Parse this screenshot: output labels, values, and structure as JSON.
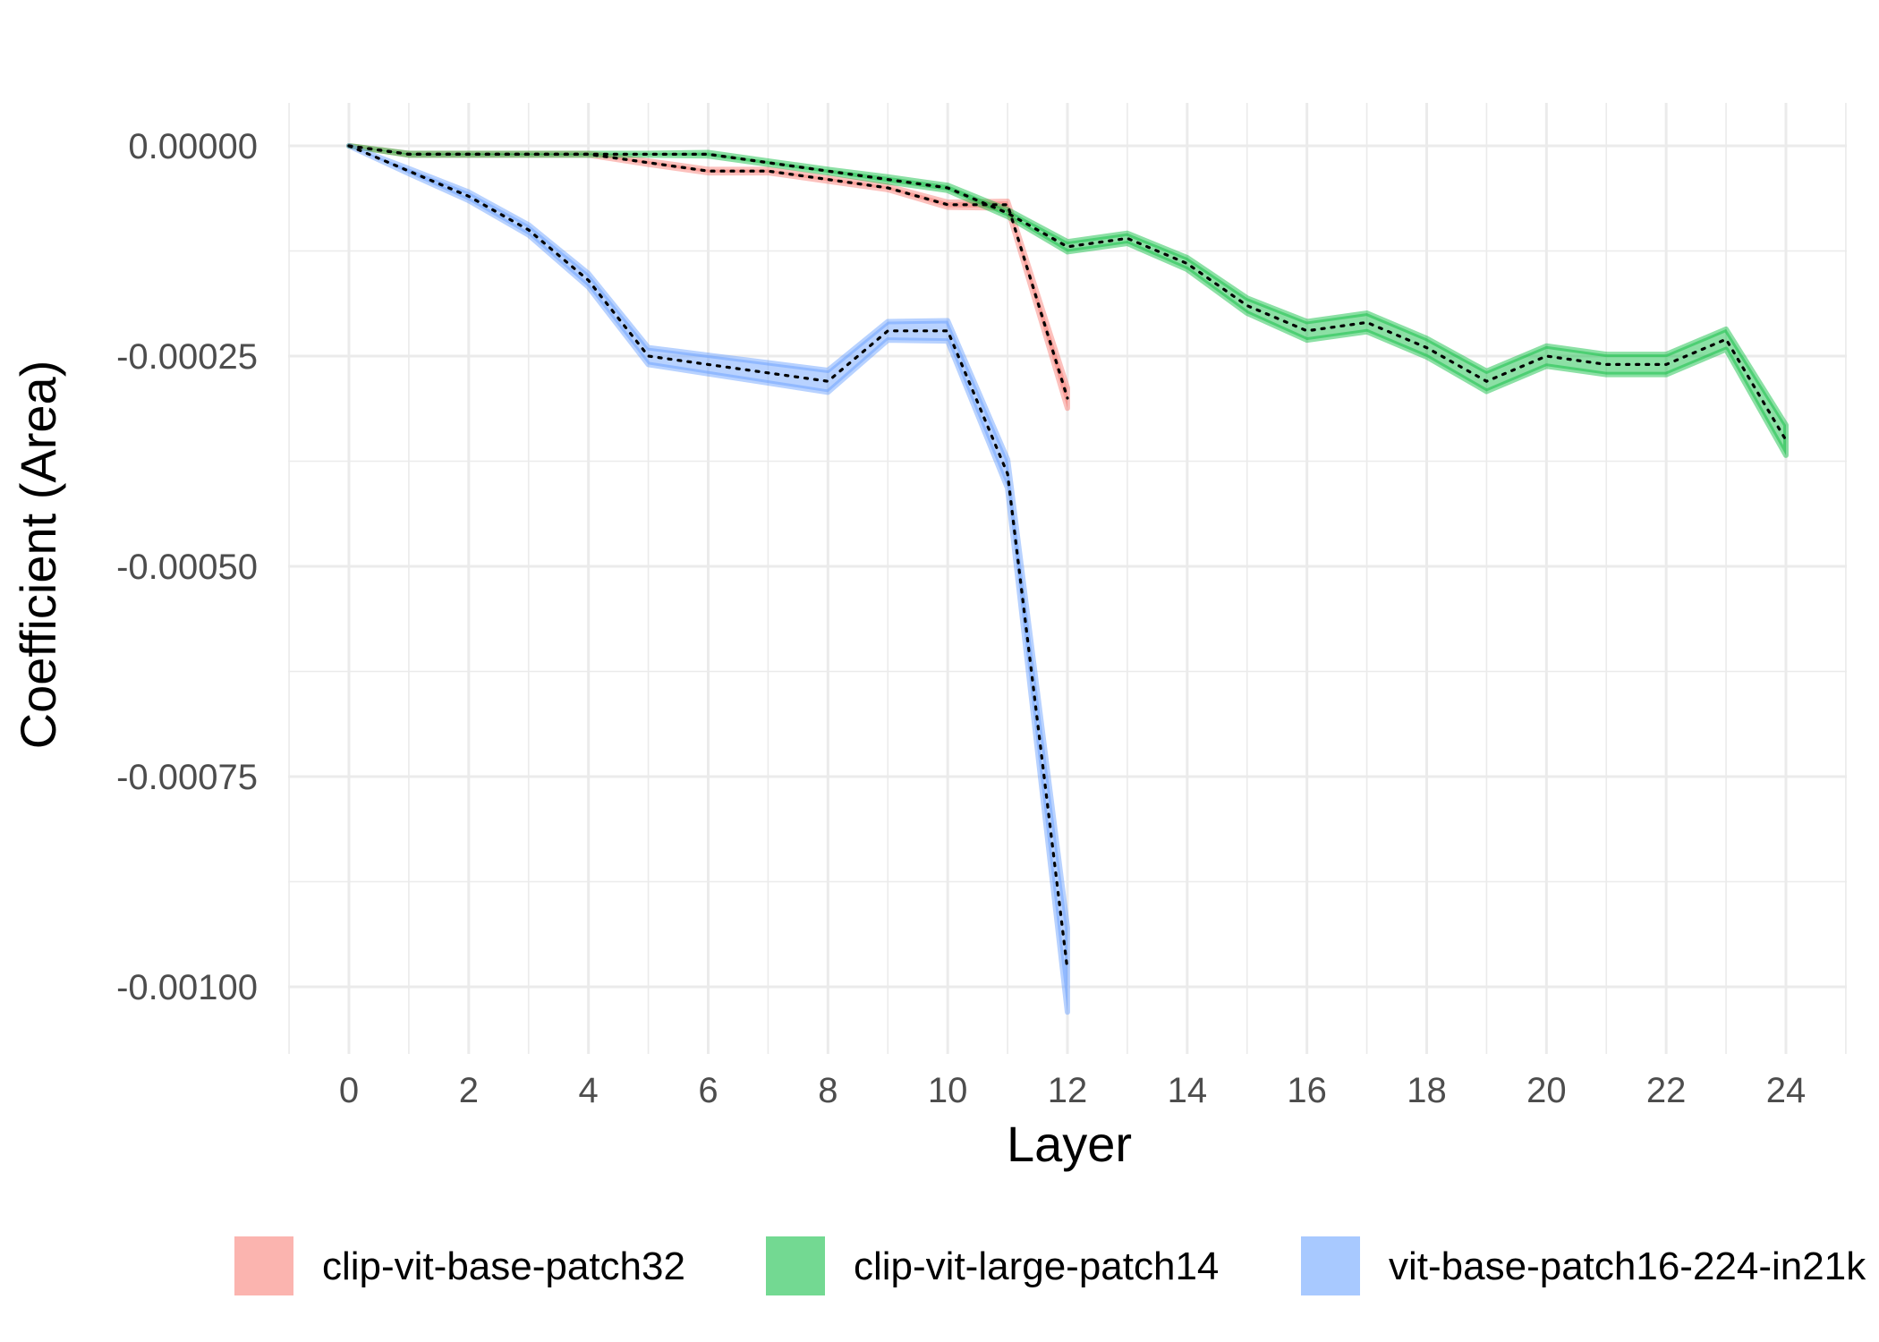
{
  "chart_data": {
    "type": "line",
    "title": "",
    "xlabel": "Layer",
    "ylabel": "Coefficient (Area)",
    "xlim": [
      -1,
      25
    ],
    "ylim": [
      -0.00107,
      5e-05
    ],
    "x_ticks": [
      0,
      2,
      4,
      6,
      8,
      10,
      12,
      14,
      16,
      18,
      20,
      22,
      24
    ],
    "x_tick_labels": [
      "0",
      "2",
      "4",
      "6",
      "8",
      "10",
      "12",
      "14",
      "16",
      "18",
      "20",
      "22",
      "24"
    ],
    "y_ticks": [
      0,
      -0.00025,
      -0.0005,
      -0.00075,
      -0.001
    ],
    "y_tick_labels": [
      "0.00000",
      "-0.00025",
      "-0.00050",
      "-0.00075",
      "-0.00100"
    ],
    "grid": true,
    "legend_position": "bottom",
    "ribbon": true,
    "mean_line_style": "dotted-black",
    "series": [
      {
        "name": "clip-vit-base-patch32",
        "color": "#F8766D",
        "x": [
          0,
          1,
          2,
          3,
          4,
          5,
          6,
          7,
          8,
          9,
          10,
          11,
          12
        ],
        "values": [
          0,
          -1e-05,
          -1e-05,
          -1e-05,
          -1e-05,
          -2e-05,
          -3e-05,
          -3e-05,
          -4e-05,
          -5e-05,
          -7e-05,
          -7e-05,
          -0.0003
        ],
        "ribbon_halfwidth": [
          0,
          1e-06,
          1e-06,
          1e-06,
          1e-06,
          2e-06,
          2e-06,
          2e-06,
          2e-06,
          2e-06,
          3e-06,
          4e-06,
          1.2e-05
        ]
      },
      {
        "name": "clip-vit-large-patch14",
        "color": "#00BA38",
        "x": [
          0,
          1,
          2,
          3,
          4,
          5,
          6,
          7,
          8,
          9,
          10,
          11,
          12,
          13,
          14,
          15,
          16,
          17,
          18,
          19,
          20,
          21,
          22,
          23,
          24
        ],
        "values": [
          0,
          -1e-05,
          -1e-05,
          -1e-05,
          -1e-05,
          -1e-05,
          -1e-05,
          -2e-05,
          -3e-05,
          -4e-05,
          -5e-05,
          -8e-05,
          -0.00012,
          -0.00011,
          -0.00014,
          -0.00019,
          -0.00022,
          -0.00021,
          -0.00024,
          -0.00028,
          -0.00025,
          -0.00026,
          -0.00026,
          -0.00023,
          -0.00035
        ],
        "ribbon_halfwidth": [
          0,
          1e-06,
          1e-06,
          1e-06,
          1e-06,
          1e-06,
          2e-06,
          2e-06,
          2e-06,
          3e-06,
          3e-06,
          4e-06,
          6e-06,
          6e-06,
          7e-06,
          9e-06,
          1.1e-05,
          1.1e-05,
          1.1e-05,
          1.2e-05,
          1.2e-05,
          1.2e-05,
          1.2e-05,
          1.2e-05,
          1.8e-05
        ]
      },
      {
        "name": "vit-base-patch16-224-in21k",
        "color": "#619CFF",
        "x": [
          0,
          1,
          2,
          3,
          4,
          5,
          6,
          7,
          8,
          9,
          10,
          11,
          12
        ],
        "values": [
          0,
          -3e-05,
          -6e-05,
          -0.0001,
          -0.00016,
          -0.00025,
          -0.00026,
          -0.00027,
          -0.00028,
          -0.00022,
          -0.00022,
          -0.00039,
          -0.00098
        ],
        "ribbon_halfwidth": [
          0,
          3e-06,
          5e-06,
          6e-06,
          8e-06,
          1e-05,
          1.1e-05,
          1.2e-05,
          1.3e-05,
          1.1e-05,
          1.2e-05,
          1.7e-05,
          5e-05
        ]
      }
    ]
  }
}
